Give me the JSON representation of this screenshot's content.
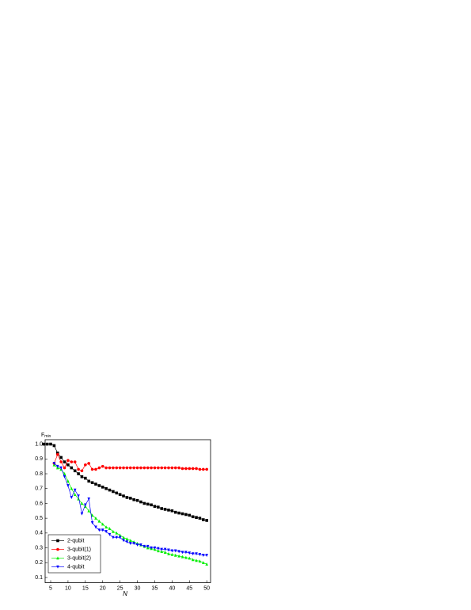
{
  "chart_data": {
    "type": "line",
    "x_label": "N",
    "y_label": {
      "main": "F",
      "sub": "min"
    },
    "xlim": [
      3.4,
      51.1
    ],
    "ylim": [
      0.065,
      1.03
    ],
    "xticks": [
      5,
      10,
      15,
      20,
      25,
      30,
      35,
      40,
      45,
      50
    ],
    "yticks": [
      0.1,
      0.2,
      0.3,
      0.4,
      0.5,
      0.6,
      0.7,
      0.8,
      0.9,
      {
        "value": 1,
        "label": "1.0"
      }
    ],
    "legend": "lower left",
    "series": [
      {
        "name": "2-qubit",
        "color": "#000000",
        "marker": "square",
        "x": [
          3,
          4,
          5,
          6,
          7,
          8,
          9,
          10,
          11,
          12,
          13,
          14,
          15,
          16,
          17,
          18,
          19,
          20,
          21,
          22,
          23,
          24,
          25,
          26,
          27,
          28,
          29,
          30,
          31,
          32,
          33,
          34,
          35,
          36,
          37,
          38,
          39,
          40,
          41,
          42,
          43,
          44,
          45,
          46,
          47,
          48,
          49,
          50
        ],
        "values": [
          1.0,
          1.0,
          1.0,
          0.99,
          0.94,
          0.91,
          0.88,
          0.86,
          0.84,
          0.82,
          0.8,
          0.78,
          0.77,
          0.75,
          0.74,
          0.73,
          0.72,
          0.71,
          0.7,
          0.69,
          0.68,
          0.67,
          0.66,
          0.65,
          0.64,
          0.635,
          0.625,
          0.62,
          0.61,
          0.6,
          0.595,
          0.59,
          0.58,
          0.575,
          0.565,
          0.56,
          0.555,
          0.55,
          0.54,
          0.535,
          0.53,
          0.525,
          0.52,
          0.51,
          0.505,
          0.5,
          0.49,
          0.485
        ]
      },
      {
        "name": "3-qubit(1)",
        "color": "#ff0000",
        "marker": "circle",
        "x": [
          6,
          7,
          8,
          9,
          10,
          11,
          12,
          13,
          14,
          15,
          16,
          17,
          18,
          19,
          20,
          21,
          22,
          23,
          24,
          25,
          26,
          27,
          28,
          29,
          30,
          31,
          32,
          33,
          34,
          35,
          36,
          37,
          38,
          39,
          40,
          41,
          42,
          43,
          44,
          45,
          46,
          47,
          48,
          49,
          50
        ],
        "values": [
          0.87,
          0.93,
          0.88,
          0.84,
          0.89,
          0.88,
          0.88,
          0.83,
          0.82,
          0.86,
          0.87,
          0.83,
          0.83,
          0.84,
          0.85,
          0.84,
          0.84,
          0.84,
          0.84,
          0.84,
          0.84,
          0.84,
          0.84,
          0.84,
          0.84,
          0.84,
          0.84,
          0.84,
          0.84,
          0.84,
          0.84,
          0.84,
          0.84,
          0.84,
          0.84,
          0.84,
          0.84,
          0.835,
          0.835,
          0.835,
          0.835,
          0.835,
          0.83,
          0.83,
          0.83
        ]
      },
      {
        "name": "3-qubit(2)",
        "color": "#00ee00",
        "marker": "triangle-up",
        "x": [
          6,
          7,
          8,
          9,
          10,
          11,
          12,
          13,
          14,
          15,
          16,
          17,
          18,
          19,
          20,
          21,
          22,
          23,
          24,
          25,
          26,
          27,
          28,
          29,
          30,
          31,
          32,
          33,
          34,
          35,
          36,
          37,
          38,
          39,
          40,
          41,
          42,
          43,
          44,
          45,
          46,
          47,
          48,
          49,
          50
        ],
        "values": [
          0.86,
          0.84,
          0.83,
          0.8,
          0.75,
          0.7,
          0.66,
          0.63,
          0.6,
          0.58,
          0.55,
          0.52,
          0.5,
          0.48,
          0.46,
          0.44,
          0.43,
          0.41,
          0.4,
          0.385,
          0.37,
          0.36,
          0.35,
          0.34,
          0.33,
          0.32,
          0.31,
          0.3,
          0.295,
          0.29,
          0.28,
          0.275,
          0.27,
          0.26,
          0.255,
          0.25,
          0.245,
          0.24,
          0.235,
          0.23,
          0.22,
          0.215,
          0.21,
          0.2,
          0.19
        ]
      },
      {
        "name": "4-qubit",
        "color": "#0000ff",
        "marker": "triangle-down",
        "x": [
          6,
          7,
          8,
          9,
          10,
          11,
          12,
          13,
          14,
          15,
          16,
          17,
          18,
          19,
          20,
          21,
          22,
          23,
          24,
          25,
          26,
          27,
          28,
          29,
          30,
          31,
          32,
          33,
          34,
          35,
          36,
          37,
          38,
          39,
          40,
          41,
          42,
          43,
          44,
          45,
          46,
          47,
          48,
          49,
          50
        ],
        "values": [
          0.87,
          0.85,
          0.84,
          0.78,
          0.72,
          0.64,
          0.69,
          0.65,
          0.53,
          0.59,
          0.63,
          0.47,
          0.44,
          0.42,
          0.42,
          0.41,
          0.39,
          0.37,
          0.37,
          0.37,
          0.35,
          0.34,
          0.33,
          0.33,
          0.32,
          0.32,
          0.31,
          0.31,
          0.3,
          0.3,
          0.295,
          0.29,
          0.29,
          0.285,
          0.28,
          0.28,
          0.275,
          0.27,
          0.27,
          0.265,
          0.26,
          0.26,
          0.255,
          0.25,
          0.25
        ]
      }
    ]
  }
}
